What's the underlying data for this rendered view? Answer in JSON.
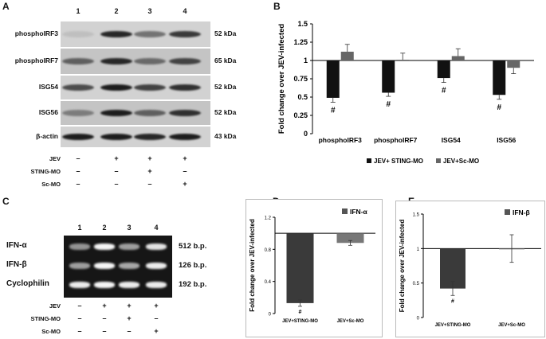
{
  "panel_a": {
    "letter": "A",
    "lanes": [
      "1",
      "2",
      "3",
      "4"
    ],
    "blots": [
      {
        "label": "phosphoIRF3",
        "kda": "52 kDa",
        "intensity": [
          0.05,
          0.85,
          0.45,
          0.75
        ]
      },
      {
        "label": "phosphoIRF7",
        "kda": "65 kDa",
        "intensity": [
          0.55,
          0.85,
          0.5,
          0.7
        ]
      },
      {
        "label": "ISG54",
        "kda": "52 kDa",
        "intensity": [
          0.65,
          0.9,
          0.7,
          0.8
        ]
      },
      {
        "label": "ISG56",
        "kda": "52 kDa",
        "intensity": [
          0.4,
          0.9,
          0.55,
          0.8
        ]
      },
      {
        "label": "β-actin",
        "kda": "43 kDa",
        "intensity": [
          0.9,
          0.9,
          0.85,
          0.9
        ]
      }
    ],
    "conditions": [
      {
        "label": "JEV",
        "signs": [
          "–",
          "+",
          "+",
          "+"
        ]
      },
      {
        "label": "STING-MO",
        "signs": [
          "–",
          "–",
          "+",
          "–"
        ]
      },
      {
        "label": "Sc-MO",
        "signs": [
          "–",
          "–",
          "–",
          "+"
        ]
      }
    ]
  },
  "panel_c": {
    "letter": "C",
    "lanes": [
      "1",
      "2",
      "3",
      "4"
    ],
    "gels": [
      {
        "label": "IFN-α",
        "bp": "512 b.p.",
        "intensity": [
          0.45,
          0.95,
          0.5,
          0.85
        ]
      },
      {
        "label": "IFN-β",
        "bp": "126 b.p.",
        "intensity": [
          0.5,
          0.95,
          0.55,
          0.9
        ]
      },
      {
        "label": "Cyclophilin",
        "bp": "192 b.p.",
        "intensity": [
          0.9,
          0.95,
          0.9,
          0.9
        ]
      }
    ],
    "conditions": [
      {
        "label": "JEV",
        "signs": [
          "–",
          "+",
          "+",
          "+"
        ]
      },
      {
        "label": "STING-MO",
        "signs": [
          "–",
          "–",
          "+",
          "–"
        ]
      },
      {
        "label": "Sc-MO",
        "signs": [
          "–",
          "–",
          "–",
          "+"
        ]
      }
    ]
  },
  "chart_data": [
    {
      "panel": "B",
      "type": "bar",
      "ylabel": "Fold change over JEV-infected",
      "categories": [
        "phosphoIRF3",
        "phosphoIRF7",
        "ISG54",
        "ISG56"
      ],
      "ylim": [
        0,
        1.5
      ],
      "yticks": [
        "0",
        "0.25",
        "0.5",
        "0.75",
        "1",
        "1.25",
        "1.5"
      ],
      "baseline": 1,
      "series": [
        {
          "name": "JEV+ STING-MO",
          "color": "#111111",
          "values": [
            0.49,
            0.56,
            0.76,
            0.53
          ],
          "errors": [
            0.06,
            0.05,
            0.06,
            0.06
          ]
        },
        {
          "name": "JEV+Sc-MO",
          "color": "#666666",
          "values": [
            1.12,
            1.01,
            1.06,
            0.9
          ],
          "errors": [
            0.1,
            0.09,
            0.1,
            0.08
          ]
        }
      ],
      "annotations": [
        "#",
        "#",
        "#",
        "#"
      ],
      "legend": "bottom"
    },
    {
      "panel": "D",
      "type": "bar",
      "ylabel": "Fold change over JEV-infected",
      "categories": [
        "JEV+STING-MO",
        "JEV+Sc-MO"
      ],
      "ylim": [
        0,
        1.2
      ],
      "yticks": [
        "0",
        "0.4",
        "0.8",
        "1.2"
      ],
      "baseline": 1,
      "values": [
        0.13,
        0.88
      ],
      "errors": [
        0.04,
        0.03
      ],
      "colors": [
        "#3a3a3a",
        "#777777"
      ],
      "annotations": [
        "#",
        ""
      ],
      "legend_label": "IFN-α",
      "legend": "top-right"
    },
    {
      "panel": "E",
      "type": "bar",
      "ylabel": "Fold change over JEV-infected",
      "categories": [
        "JEV+STING-MO",
        "JEV+Sc-MO"
      ],
      "ylim": [
        0,
        1.5
      ],
      "yticks": [
        "0",
        "0.5",
        "1",
        "1.5"
      ],
      "baseline": 1,
      "values": [
        0.42,
        1.0
      ],
      "errors": [
        0.1,
        0.2
      ],
      "colors": [
        "#3a3a3a",
        "#777777"
      ],
      "annotations": [
        "#",
        ""
      ],
      "legend_label": "IFN-β",
      "legend": "top-right"
    }
  ]
}
